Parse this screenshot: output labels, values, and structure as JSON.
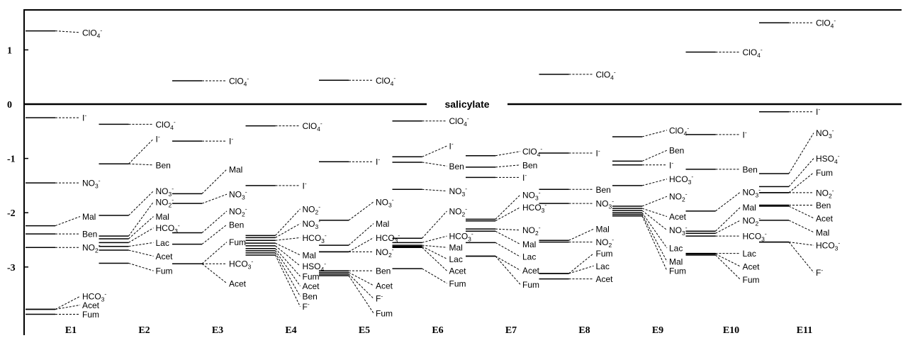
{
  "chart_data": {
    "type": "line",
    "title": "",
    "xlabel": "",
    "ylabel": "",
    "reference_label": "salicylate",
    "ylim": [
      -4.3,
      1.6
    ],
    "yticks": [
      {
        "value": 1,
        "label": "1"
      },
      {
        "value": 0,
        "label": "0"
      },
      {
        "value": -1,
        "label": "-1"
      },
      {
        "value": -2,
        "label": "-2"
      },
      {
        "value": -3,
        "label": "-3"
      }
    ],
    "grid": false,
    "legend": "none",
    "columns": [
      {
        "label": "E1",
        "entries": [
          {
            "ion": "ClO",
            "sub": "4",
            "sup": "-",
            "value": 1.35,
            "label_y": 1.32
          },
          {
            "ion": "I",
            "sub": "",
            "sup": "-",
            "value": -0.25,
            "label_y": -0.25
          },
          {
            "ion": "NO",
            "sub": "3",
            "sup": "-",
            "value": -1.45,
            "label_y": -1.45
          },
          {
            "ion": "Mal",
            "sub": "",
            "sup": "",
            "value": -2.24,
            "label_y": -2.07
          },
          {
            "ion": "Ben",
            "sub": "",
            "sup": "",
            "value": -2.39,
            "label_y": -2.39
          },
          {
            "ion": "NO",
            "sub": "2",
            "sup": "-",
            "value": -2.64,
            "label_y": -2.64
          },
          {
            "ion": "HCO",
            "sub": "3",
            "sup": "-",
            "value": -3.78,
            "label_y": -3.54
          },
          {
            "ion": "Acet",
            "sub": "",
            "sup": "",
            "value": -3.78,
            "label_y": -3.7
          },
          {
            "ion": "Fum",
            "sub": "",
            "sup": "",
            "value": -3.87,
            "label_y": -3.87
          }
        ]
      },
      {
        "label": "E2",
        "entries": [
          {
            "ion": "ClO",
            "sub": "4",
            "sup": "-",
            "value": -0.37,
            "label_y": -0.37
          },
          {
            "ion": "I",
            "sub": "",
            "sup": "-",
            "value": -1.1,
            "label_y": -0.64
          },
          {
            "ion": "Ben",
            "sub": "",
            "sup": "",
            "value": -1.1,
            "label_y": -1.12
          },
          {
            "ion": "NO",
            "sub": "3",
            "sup": "-",
            "value": -2.05,
            "label_y": -1.6
          },
          {
            "ion": "NO",
            "sub": "2",
            "sup": "-",
            "value": -2.43,
            "label_y": -1.8
          },
          {
            "ion": "Mal",
            "sub": "",
            "sup": "",
            "value": -2.48,
            "label_y": -2.07
          },
          {
            "ion": "HCO",
            "sub": "3",
            "sup": "-",
            "value": -2.55,
            "label_y": -2.28
          },
          {
            "ion": "Lac",
            "sub": "",
            "sup": "",
            "value": -2.62,
            "label_y": -2.55
          },
          {
            "ion": "Acet",
            "sub": "",
            "sup": "",
            "value": -2.69,
            "label_y": -2.8
          },
          {
            "ion": "Fum",
            "sub": "",
            "sup": "",
            "value": -2.93,
            "label_y": -3.07
          }
        ]
      },
      {
        "label": "E3",
        "entries": [
          {
            "ion": "ClO",
            "sub": "4",
            "sup": "-",
            "value": 0.43,
            "label_y": 0.43
          },
          {
            "ion": "I",
            "sub": "",
            "sup": "-",
            "value": -0.68,
            "label_y": -0.68
          },
          {
            "ion": "Mal",
            "sub": "",
            "sup": "",
            "value": -1.65,
            "label_y": -1.2
          },
          {
            "ion": "NO",
            "sub": "3",
            "sup": "-",
            "value": -1.83,
            "label_y": -1.66
          },
          {
            "ion": "NO",
            "sub": "2",
            "sup": "-",
            "value": -2.37,
            "label_y": -1.97
          },
          {
            "ion": "Ben",
            "sub": "",
            "sup": "",
            "value": -2.58,
            "label_y": -2.22
          },
          {
            "ion": "Fum",
            "sub": "",
            "sup": "",
            "value": -2.94,
            "label_y": -2.54
          },
          {
            "ion": "HCO",
            "sub": "3",
            "sup": "-",
            "value": -2.94,
            "label_y": -2.94
          },
          {
            "ion": "Acet",
            "sub": "",
            "sup": "",
            "value": -2.94,
            "label_y": -3.3
          }
        ]
      },
      {
        "label": "E4",
        "entries": [
          {
            "ion": "ClO",
            "sub": "4",
            "sup": "-",
            "value": -0.4,
            "label_y": -0.4
          },
          {
            "ion": "I",
            "sub": "",
            "sup": "-",
            "value": -1.5,
            "label_y": -1.5
          },
          {
            "ion": "NO",
            "sub": "2",
            "sup": "-",
            "value": -2.42,
            "label_y": -1.93
          },
          {
            "ion": "NO",
            "sub": "3",
            "sup": "-",
            "value": -2.46,
            "label_y": -2.2
          },
          {
            "ion": "HCO",
            "sub": "3",
            "sup": "-",
            "value": -2.51,
            "label_y": -2.46
          },
          {
            "ion": "Mal",
            "sub": "",
            "sup": "",
            "value": -2.56,
            "label_y": -2.78
          },
          {
            "ion": "HSO",
            "sub": "4",
            "sup": "-",
            "value": -2.61,
            "label_y": -2.98
          },
          {
            "ion": "Fum",
            "sub": "",
            "sup": "",
            "value": -2.66,
            "label_y": -3.17
          },
          {
            "ion": "Acet",
            "sub": "",
            "sup": "",
            "value": -2.7,
            "label_y": -3.35
          },
          {
            "ion": "Ben",
            "sub": "",
            "sup": "",
            "value": -2.74,
            "label_y": -3.54
          },
          {
            "ion": "F",
            "sub": "",
            "sup": "-",
            "value": -2.78,
            "label_y": -3.73
          }
        ]
      },
      {
        "label": "E5",
        "entries": [
          {
            "ion": "ClO",
            "sub": "4",
            "sup": "-",
            "value": 0.44,
            "label_y": 0.44
          },
          {
            "ion": "I",
            "sub": "",
            "sup": "-",
            "value": -1.06,
            "label_y": -1.06
          },
          {
            "ion": "NO",
            "sub": "3",
            "sup": "-",
            "value": -2.14,
            "label_y": -1.8
          },
          {
            "ion": "Mal",
            "sub": "",
            "sup": "",
            "value": -2.6,
            "label_y": -2.2
          },
          {
            "ion": "HCO",
            "sub": "3",
            "sup": "-",
            "value": -2.72,
            "label_y": -2.46
          },
          {
            "ion": "NO",
            "sub": "2",
            "sup": "-",
            "value": -2.72,
            "label_y": -2.72
          },
          {
            "ion": "Ben",
            "sub": "",
            "sup": "",
            "value": -3.07,
            "label_y": -3.07
          },
          {
            "ion": "Acet",
            "sub": "",
            "sup": "",
            "value": -3.1,
            "label_y": -3.34
          },
          {
            "ion": "F",
            "sub": "",
            "sup": "-",
            "value": -3.13,
            "label_y": -3.58
          },
          {
            "ion": "Fum",
            "sub": "",
            "sup": "",
            "value": -3.16,
            "label_y": -3.85
          }
        ]
      },
      {
        "label": "E6",
        "entries": [
          {
            "ion": "ClO",
            "sub": "4",
            "sup": "-",
            "value": -0.31,
            "label_y": -0.31
          },
          {
            "ion": "I",
            "sub": "",
            "sup": "-",
            "value": -0.97,
            "label_y": -0.77
          },
          {
            "ion": "Ben",
            "sub": "",
            "sup": "",
            "value": -1.07,
            "label_y": -1.14
          },
          {
            "ion": "NO",
            "sub": "3",
            "sup": "-",
            "value": -1.57,
            "label_y": -1.6
          },
          {
            "ion": "NO",
            "sub": "2",
            "sup": "-",
            "value": -2.47,
            "label_y": -1.97
          },
          {
            "ion": "HCO",
            "sub": "3",
            "sup": "-",
            "value": -2.55,
            "label_y": -2.43
          },
          {
            "ion": "Mal",
            "sub": "",
            "sup": "",
            "value": -2.6,
            "label_y": -2.64
          },
          {
            "ion": "Lac",
            "sub": "",
            "sup": "",
            "value": -2.62,
            "label_y": -2.85
          },
          {
            "ion": "Acet",
            "sub": "",
            "sup": "",
            "value": -2.64,
            "label_y": -3.07
          },
          {
            "ion": "Fum",
            "sub": "",
            "sup": "",
            "value": -3.03,
            "label_y": -3.3
          }
        ]
      },
      {
        "label": "E7",
        "entries": [
          {
            "ion": "ClO",
            "sub": "4",
            "sup": "-",
            "value": -0.95,
            "label_y": -0.87
          },
          {
            "ion": "Ben",
            "sub": "",
            "sup": "",
            "value": -1.16,
            "label_y": -1.12
          },
          {
            "ion": "I",
            "sub": "",
            "sup": "-",
            "value": -1.35,
            "label_y": -1.35
          },
          {
            "ion": "NO",
            "sub": "3",
            "sup": "-",
            "value": -2.12,
            "label_y": -1.67
          },
          {
            "ion": "HCO",
            "sub": "3",
            "sup": "-",
            "value": -2.15,
            "label_y": -1.9
          },
          {
            "ion": "NO",
            "sub": "2",
            "sup": "-",
            "value": -2.3,
            "label_y": -2.32
          },
          {
            "ion": "Mal",
            "sub": "",
            "sup": "",
            "value": -2.34,
            "label_y": -2.58
          },
          {
            "ion": "Lac",
            "sub": "",
            "sup": "",
            "value": -2.55,
            "label_y": -2.81
          },
          {
            "ion": "Acet",
            "sub": "",
            "sup": "",
            "value": -2.8,
            "label_y": -3.06
          },
          {
            "ion": "Fum",
            "sub": "",
            "sup": "",
            "value": -2.8,
            "label_y": -3.32
          }
        ]
      },
      {
        "label": "E8",
        "entries": [
          {
            "ion": "ClO",
            "sub": "4",
            "sup": "-",
            "value": 0.55,
            "label_y": 0.55
          },
          {
            "ion": "I",
            "sub": "",
            "sup": "-",
            "value": -0.9,
            "label_y": -0.9
          },
          {
            "ion": "Ben",
            "sub": "",
            "sup": "",
            "value": -1.57,
            "label_y": -1.57
          },
          {
            "ion": "NO",
            "sub": "3",
            "sup": "-",
            "value": -1.83,
            "label_y": -1.83
          },
          {
            "ion": "Mal",
            "sub": "",
            "sup": "",
            "value": -2.51,
            "label_y": -2.3
          },
          {
            "ion": "NO",
            "sub": "2",
            "sup": "-",
            "value": -2.54,
            "label_y": -2.54
          },
          {
            "ion": "Fum",
            "sub": "",
            "sup": "",
            "value": -3.12,
            "label_y": -2.75
          },
          {
            "ion": "Lac",
            "sub": "",
            "sup": "",
            "value": -3.12,
            "label_y": -2.98
          },
          {
            "ion": "Acet",
            "sub": "",
            "sup": "",
            "value": -3.22,
            "label_y": -3.22
          }
        ]
      },
      {
        "label": "E9",
        "entries": [
          {
            "ion": "ClO",
            "sub": "4",
            "sup": "-",
            "value": -0.6,
            "label_y": -0.48
          },
          {
            "ion": "Ben",
            "sub": "",
            "sup": "",
            "value": -1.05,
            "label_y": -0.85
          },
          {
            "ion": "I",
            "sub": "",
            "sup": "-",
            "value": -1.12,
            "label_y": -1.12
          },
          {
            "ion": "HCO",
            "sub": "3",
            "sup": "-",
            "value": -1.5,
            "label_y": -1.38
          },
          {
            "ion": "NO",
            "sub": "2",
            "sup": "-",
            "value": -1.88,
            "label_y": -1.7
          },
          {
            "ion": "Acet",
            "sub": "",
            "sup": "",
            "value": -1.92,
            "label_y": -2.07
          },
          {
            "ion": "NO",
            "sub": "3",
            "sup": "-",
            "value": -1.96,
            "label_y": -2.32
          },
          {
            "ion": "Lac",
            "sub": "",
            "sup": "",
            "value": -2.0,
            "label_y": -2.65
          },
          {
            "ion": "Mal",
            "sub": "",
            "sup": "",
            "value": -2.03,
            "label_y": -2.9
          },
          {
            "ion": "Fum",
            "sub": "",
            "sup": "",
            "value": -2.06,
            "label_y": -3.07
          }
        ]
      },
      {
        "label": "E10",
        "entries": [
          {
            "ion": "ClO",
            "sub": "4",
            "sup": "-",
            "value": 0.96,
            "label_y": 0.96
          },
          {
            "ion": "I",
            "sub": "",
            "sup": "-",
            "value": -0.56,
            "label_y": -0.56
          },
          {
            "ion": "Ben",
            "sub": "",
            "sup": "",
            "value": -1.2,
            "label_y": -1.2
          },
          {
            "ion": "NO",
            "sub": "3",
            "sup": "-",
            "value": -1.97,
            "label_y": -1.62
          },
          {
            "ion": "Mal",
            "sub": "",
            "sup": "",
            "value": -2.34,
            "label_y": -1.9
          },
          {
            "ion": "NO",
            "sub": "2",
            "sup": "-",
            "value": -2.38,
            "label_y": -2.14
          },
          {
            "ion": "HCO",
            "sub": "3",
            "sup": "-",
            "value": -2.43,
            "label_y": -2.43
          },
          {
            "ion": "Lac",
            "sub": "",
            "sup": "",
            "value": -2.75,
            "label_y": -2.75
          },
          {
            "ion": "Acet",
            "sub": "",
            "sup": "",
            "value": -2.76,
            "label_y": -2.99
          },
          {
            "ion": "Fum",
            "sub": "",
            "sup": "",
            "value": -2.78,
            "label_y": -3.23
          }
        ]
      },
      {
        "label": "E11",
        "entries": [
          {
            "ion": "ClO",
            "sub": "4",
            "sup": "-",
            "value": 1.5,
            "label_y": 1.5
          },
          {
            "ion": "I",
            "sub": "",
            "sup": "-",
            "value": -0.14,
            "label_y": -0.14
          },
          {
            "ion": "NO",
            "sub": "3",
            "sup": "-",
            "value": -1.28,
            "label_y": -0.53
          },
          {
            "ion": "HSO",
            "sub": "4",
            "sup": "-",
            "value": -1.52,
            "label_y": -1.0
          },
          {
            "ion": "Fum",
            "sub": "",
            "sup": "",
            "value": -1.63,
            "label_y": -1.26
          },
          {
            "ion": "NO",
            "sub": "2",
            "sup": "-",
            "value": -1.63,
            "label_y": -1.63
          },
          {
            "ion": "Ben",
            "sub": "",
            "sup": "",
            "value": -1.86,
            "label_y": -1.86
          },
          {
            "ion": "Acet",
            "sub": "",
            "sup": "",
            "value": -1.88,
            "label_y": -2.1
          },
          {
            "ion": "Mal",
            "sub": "",
            "sup": "",
            "value": -2.14,
            "label_y": -2.36
          },
          {
            "ion": "HCO",
            "sub": "3",
            "sup": "-",
            "value": -2.54,
            "label_y": -2.6
          },
          {
            "ion": "F",
            "sub": "",
            "sup": "-",
            "value": -2.54,
            "label_y": -3.1
          }
        ]
      }
    ]
  }
}
